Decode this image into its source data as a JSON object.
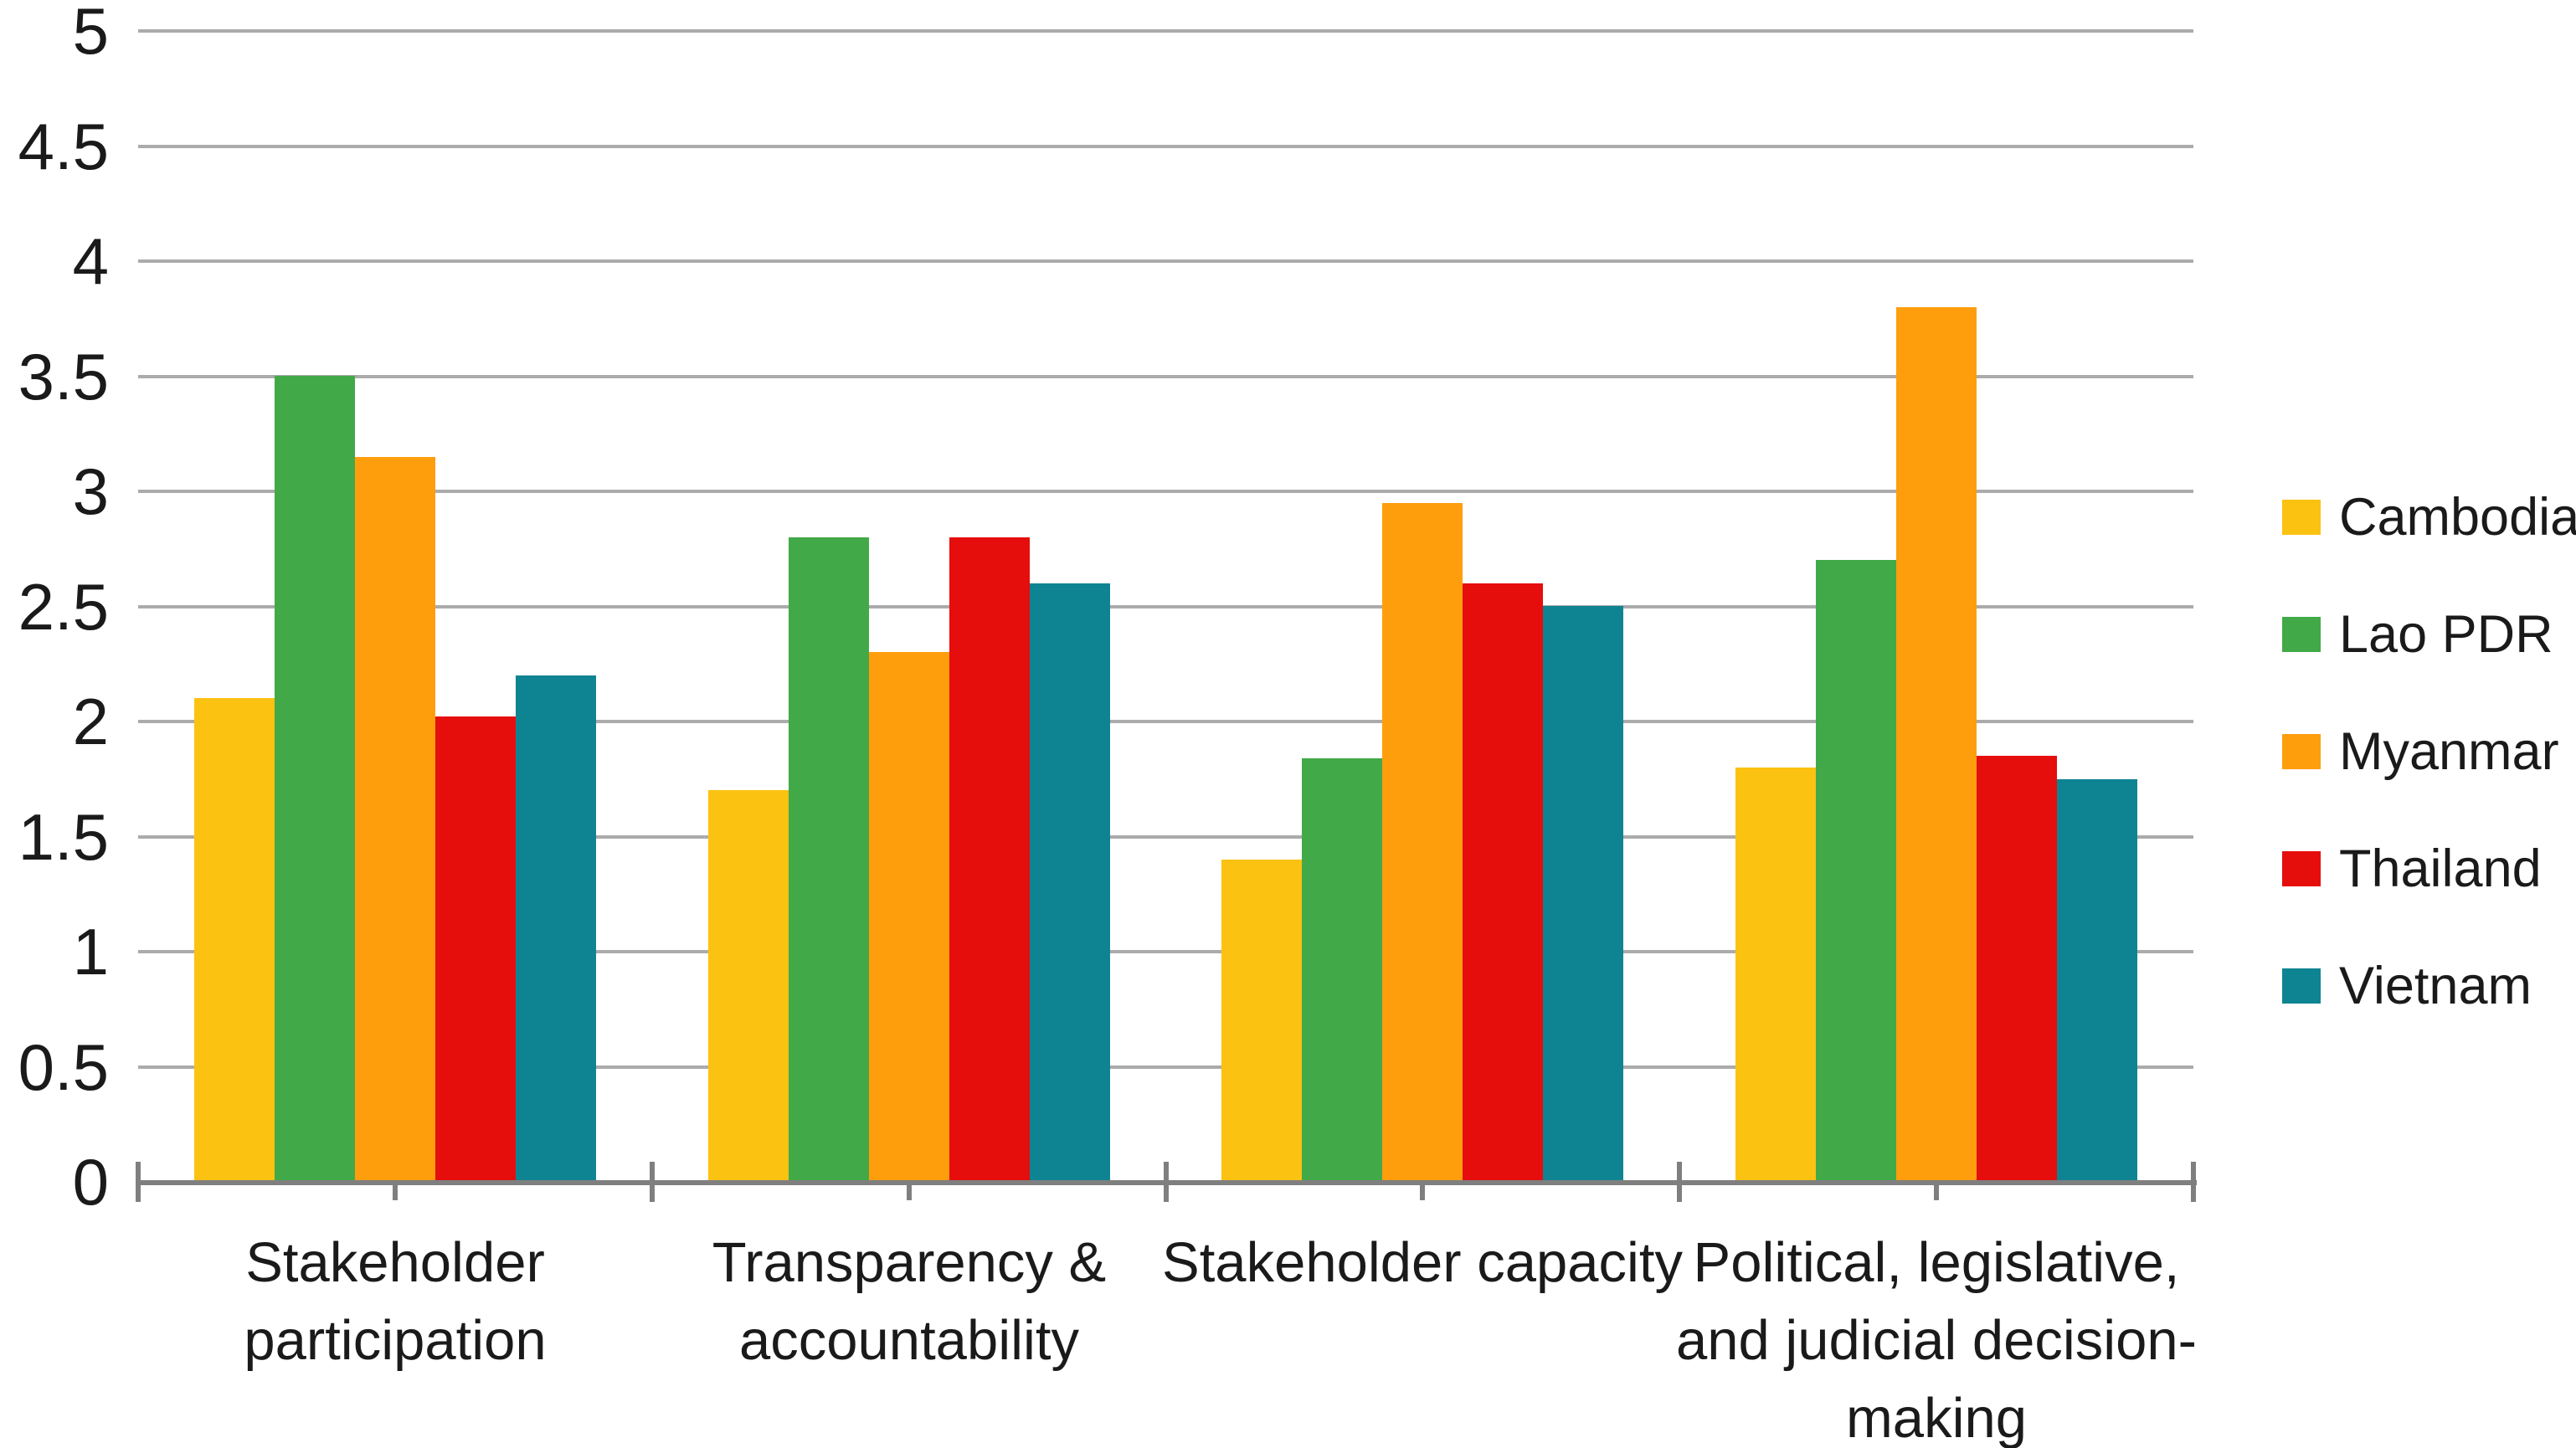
{
  "chart_data": {
    "type": "bar",
    "title": "",
    "xlabel": "",
    "ylabel": "",
    "ylim": [
      0,
      5
    ],
    "ytick_step": 0.5,
    "ytick_labels": [
      "0",
      "0.5",
      "1",
      "1.5",
      "2",
      "2.5",
      "3",
      "3.5",
      "4",
      "4.5",
      "5"
    ],
    "grid": true,
    "legend_position": "right",
    "categories": [
      {
        "label": "Stakeholder participation",
        "lines": "Stakeholder\nparticipation"
      },
      {
        "label": "Transparency & accountability",
        "lines": "Transparency &\naccountability"
      },
      {
        "label": "Stakeholder capacity",
        "lines": "Stakeholder capacity"
      },
      {
        "label": "Political, legislative, and judicial decision-making",
        "lines": "Political, legislative,\nand judicial decision-\nmaking"
      }
    ],
    "series": [
      {
        "name": "Cambodia",
        "color": "#fcc211",
        "values": [
          2.1,
          1.7,
          1.4,
          1.8
        ]
      },
      {
        "name": "Lao PDR",
        "color": "#42a948",
        "values": [
          3.5,
          2.8,
          1.84,
          2.7
        ]
      },
      {
        "name": "Myanmar",
        "color": "#ff9e0d",
        "values": [
          3.15,
          2.3,
          2.95,
          3.8
        ]
      },
      {
        "name": "Thailand",
        "color": "#e60d0d",
        "values": [
          2.02,
          2.8,
          2.6,
          1.85
        ]
      },
      {
        "name": "Vietnam",
        "color": "#0e8492",
        "values": [
          2.2,
          2.6,
          2.5,
          1.75
        ]
      }
    ]
  },
  "colors": {
    "background": "#ffffff",
    "gridline": "#ababab",
    "axis": "#7f7f7f",
    "text": "#1a1a1a"
  }
}
